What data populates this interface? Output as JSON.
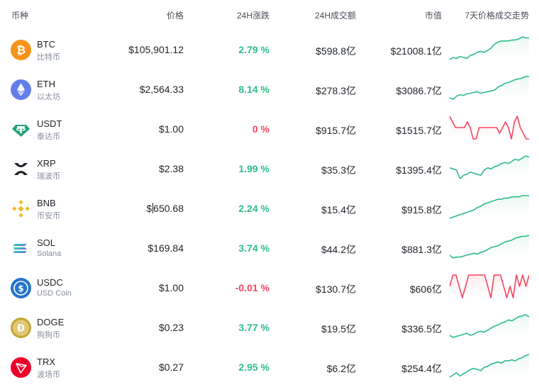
{
  "header": {
    "coin": "币种",
    "price": "价格",
    "change": "24H涨跌",
    "volume": "24H成交额",
    "market_cap": "市值",
    "trend": "7天价格成交走势"
  },
  "colors": {
    "up": "#2ebd85",
    "down": "#f6465d",
    "up_fill": "#e6f7ef",
    "down_fill": "#fde8eb"
  },
  "coins": [
    {
      "symbol": "BTC",
      "name": "比特币",
      "price": "$105,901.12",
      "change": "2.79 %",
      "direction": "up",
      "volume": "$598.8亿",
      "market_cap": "$21008.1亿",
      "icon": "bitcoin-icon",
      "icon_color": "#f7931a",
      "trend": [
        40,
        42,
        41,
        43,
        42,
        41,
        44,
        45,
        47,
        48,
        47,
        49,
        51,
        55,
        57,
        58,
        58,
        58,
        59,
        59,
        60,
        62,
        61,
        61
      ]
    },
    {
      "symbol": "ETH",
      "name": "以太坊",
      "price": "$2,564.33",
      "change": "8.14 %",
      "direction": "up",
      "volume": "$278.3亿",
      "market_cap": "$3086.7亿",
      "icon": "ethereum-icon",
      "icon_color": "#627eea",
      "trend": [
        30,
        28,
        32,
        34,
        33,
        35,
        36,
        37,
        38,
        36,
        37,
        38,
        39,
        40,
        44,
        46,
        49,
        50,
        52,
        54,
        55,
        56,
        58,
        58
      ]
    },
    {
      "symbol": "USDT",
      "name": "泰达币",
      "price": "$1.00",
      "change": "0 %",
      "direction": "down",
      "volume": "$915.7亿",
      "market_cap": "$1515.7亿",
      "icon": "tether-icon",
      "icon_color": "#26a17b",
      "trend": [
        2,
        1,
        0,
        0,
        0,
        0,
        1,
        0,
        -2,
        -2,
        0,
        0,
        0,
        0,
        0,
        0,
        0,
        -1,
        0,
        1,
        0,
        -2,
        1,
        2,
        0,
        -1,
        -2,
        -2
      ]
    },
    {
      "symbol": "XRP",
      "name": "瑞波币",
      "price": "$2.38",
      "change": "1.99 %",
      "direction": "up",
      "volume": "$35.3亿",
      "market_cap": "$1395.4亿",
      "icon": "xrp-icon",
      "icon_color": "#1e2329",
      "trend": [
        40,
        39,
        38,
        30,
        33,
        34,
        36,
        35,
        34,
        33,
        38,
        40,
        39,
        41,
        42,
        44,
        45,
        44,
        46,
        48,
        47,
        49,
        51,
        50
      ]
    },
    {
      "symbol": "BNB",
      "name": "币安币",
      "price": "$650.68",
      "change": "2.24 %",
      "direction": "up",
      "volume": "$15.4亿",
      "market_cap": "$915.8亿",
      "icon": "bnb-icon",
      "icon_color": "#f3ba2f",
      "trend": [
        40,
        41,
        42,
        43,
        44,
        45,
        46,
        47,
        49,
        50,
        52,
        53,
        54,
        55,
        56,
        56,
        57,
        57,
        58,
        58,
        58,
        59,
        59,
        59
      ]
    },
    {
      "symbol": "SOL",
      "name": "Solana",
      "price": "$169.84",
      "change": "3.74 %",
      "direction": "up",
      "volume": "$44.2亿",
      "market_cap": "$881.3亿",
      "icon": "solana-icon",
      "icon_color": "#9945ff",
      "trend": [
        40,
        37,
        38,
        38,
        39,
        40,
        41,
        42,
        41,
        43,
        44,
        46,
        48,
        49,
        50,
        52,
        54,
        55,
        56,
        58,
        59,
        60,
        60,
        61
      ]
    },
    {
      "symbol": "USDC",
      "name": "USD Coin",
      "price": "$1.00",
      "change": "-0.01 %",
      "direction": "down",
      "volume": "$130.7亿",
      "market_cap": "$606亿",
      "icon": "usdc-icon",
      "icon_color": "#2775ca",
      "trend": [
        0,
        1,
        1,
        0,
        -1,
        0,
        1,
        1,
        1,
        1,
        1,
        1,
        0,
        -1,
        1,
        1,
        1,
        0,
        -1,
        0,
        -1,
        1,
        0,
        1,
        0,
        1
      ]
    },
    {
      "symbol": "DOGE",
      "name": "狗狗币",
      "price": "$0.23",
      "change": "3.77 %",
      "direction": "up",
      "volume": "$19.5亿",
      "market_cap": "$336.5亿",
      "icon": "dogecoin-icon",
      "icon_color": "#c2a633",
      "trend": [
        40,
        38,
        39,
        40,
        41,
        42,
        40,
        41,
        43,
        44,
        43,
        45,
        47,
        49,
        50,
        52,
        53,
        55,
        54,
        56,
        58,
        59,
        60,
        58
      ]
    },
    {
      "symbol": "TRX",
      "name": "波场币",
      "price": "$0.27",
      "change": "2.95 %",
      "direction": "up",
      "volume": "$6.2亿",
      "market_cap": "$254.4亿",
      "icon": "tron-icon",
      "icon_color": "#eb0029",
      "trend": [
        40,
        42,
        44,
        41,
        43,
        45,
        47,
        48,
        47,
        46,
        49,
        50,
        52,
        53,
        54,
        53,
        55,
        55,
        56,
        55,
        57,
        58,
        60,
        61
      ]
    }
  ]
}
